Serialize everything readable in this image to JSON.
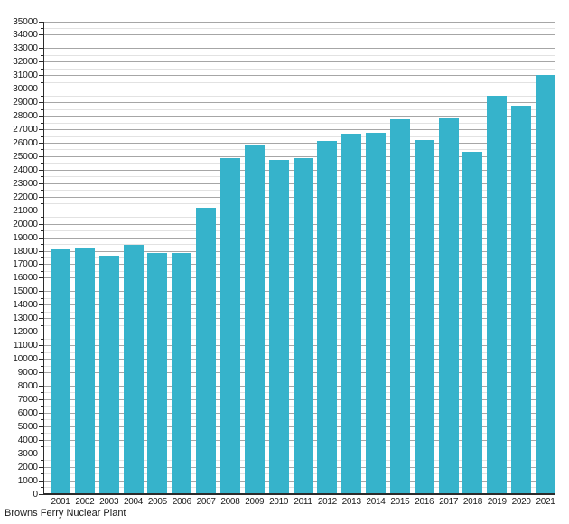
{
  "chart_data": {
    "type": "bar",
    "title": "",
    "footer": "Browns Ferry Nuclear Plant",
    "categories": [
      "2001",
      "2002",
      "2003",
      "2004",
      "2005",
      "2006",
      "2007",
      "2008",
      "2009",
      "2010",
      "2011",
      "2012",
      "2013",
      "2014",
      "2015",
      "2016",
      "2017",
      "2018",
      "2019",
      "2020",
      "2021"
    ],
    "values": [
      18150,
      18200,
      17650,
      18450,
      17900,
      17850,
      21200,
      24900,
      25800,
      24750,
      24900,
      26150,
      26700,
      26800,
      27750,
      26200,
      27850,
      25350,
      29500,
      28800,
      31050
    ],
    "xlabel": "",
    "ylabel": "",
    "ylim": [
      0,
      35000
    ],
    "y_major_step": 1000,
    "y_minor_step": 500,
    "grid": true,
    "legend_position": "none",
    "bar_color": "#36b3cb",
    "major_grid_color": "#a6a6a6",
    "minor_grid_color": "#e2e2e2",
    "axis_color": "#2b2b2b",
    "text_color": "#1a1a1a"
  }
}
